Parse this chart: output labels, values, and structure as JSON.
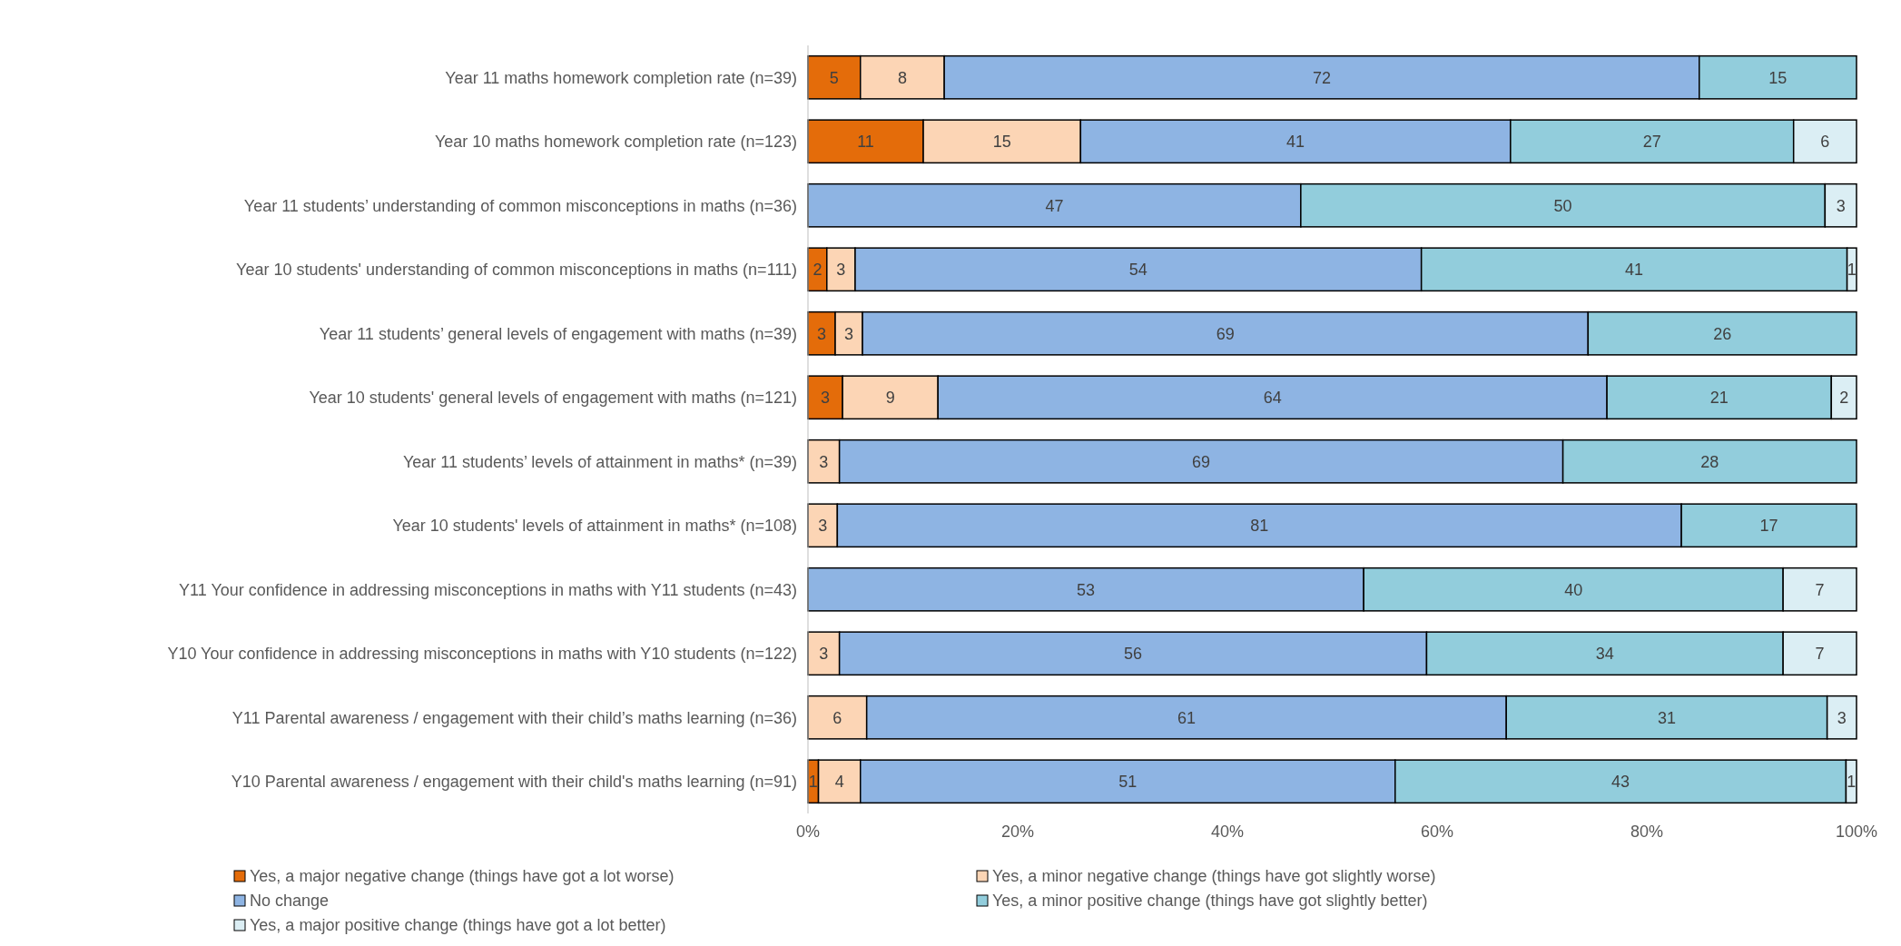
{
  "chart_data": {
    "type": "bar",
    "orientation": "horizontal",
    "stacked": true,
    "categories": [
      "Year 11 maths homework completion rate (n=39)",
      "Year 10 maths homework completion rate (n=123)",
      "Year 11 students’ understanding of common misconceptions in maths (n=36)",
      "Year 10 students' understanding of common misconceptions in maths (n=111)",
      "Year 11 students’ general levels of engagement with maths (n=39)",
      "Year 10 students' general levels of engagement with maths (n=121)",
      "Year 11 students’ levels of attainment in maths* (n=39)",
      "Year 10 students' levels of attainment in maths* (n=108)",
      "Y11 Your confidence in addressing misconceptions in maths with Y11 students (n=43)",
      "Y10 Your confidence in addressing misconceptions in maths with Y10 students (n=122)",
      "Y11 Parental awareness / engagement with their child’s maths learning (n=36)",
      "Y10 Parental awareness / engagement with their child's maths learning (n=91)"
    ],
    "series": [
      {
        "name": "Yes, a major negative change (things have got a lot worse)",
        "color": "#e46c0a",
        "values": [
          5,
          11,
          null,
          1.8,
          2.6,
          3.3,
          null,
          null,
          null,
          null,
          null,
          1
        ],
        "value_labels": [
          "5",
          "11",
          null,
          "2",
          "3",
          "3",
          null,
          null,
          null,
          null,
          null,
          "1"
        ]
      },
      {
        "name": "Yes, a minor negative change (things have got slightly worse)",
        "color": "#fcd5b5",
        "values": [
          8,
          15,
          null,
          2.7,
          2.6,
          9.1,
          3,
          2.8,
          null,
          3,
          5.6,
          4
        ],
        "value_labels": [
          "8",
          "15",
          null,
          "3",
          "3",
          "9",
          "3",
          "3",
          null,
          "3",
          "6",
          "4"
        ]
      },
      {
        "name": "No change",
        "color": "#8eb4e3",
        "values": [
          72,
          41,
          47,
          54,
          69.2,
          63.8,
          69,
          80.5,
          53,
          56,
          61,
          51
        ],
        "value_labels": [
          "72",
          "41",
          "47",
          "54",
          "69",
          "64",
          "69",
          "81",
          "53",
          "56",
          "61",
          "51"
        ]
      },
      {
        "name": "Yes, a minor positive change (things have got slightly better)",
        "color": "#92cddc",
        "values": [
          15,
          27,
          50,
          40.6,
          25.6,
          21.4,
          28,
          16.7,
          40,
          34,
          30.6,
          43
        ],
        "value_labels": [
          "15",
          "27",
          "50",
          "41",
          "26",
          "21",
          "28",
          "17",
          "40",
          "34",
          "31",
          "43"
        ]
      },
      {
        "name": "Yes, a major positive change (things have got a lot better)",
        "color": "#dbeef4",
        "values": [
          null,
          6,
          3,
          0.9,
          null,
          2.4,
          null,
          null,
          7,
          7,
          2.8,
          1
        ],
        "value_labels": [
          null,
          "6",
          "3",
          "1",
          null,
          "2",
          null,
          null,
          "7",
          "7",
          "3",
          "1"
        ]
      }
    ],
    "xlim": [
      0,
      100
    ],
    "xticks": [
      {
        "value": 0,
        "label": "0%"
      },
      {
        "value": 20,
        "label": "20%"
      },
      {
        "value": 40,
        "label": "40%"
      },
      {
        "value": 60,
        "label": "60%"
      },
      {
        "value": 80,
        "label": "80%"
      },
      {
        "value": 100,
        "label": "100%"
      }
    ],
    "grid": false,
    "legend": "bottom"
  }
}
